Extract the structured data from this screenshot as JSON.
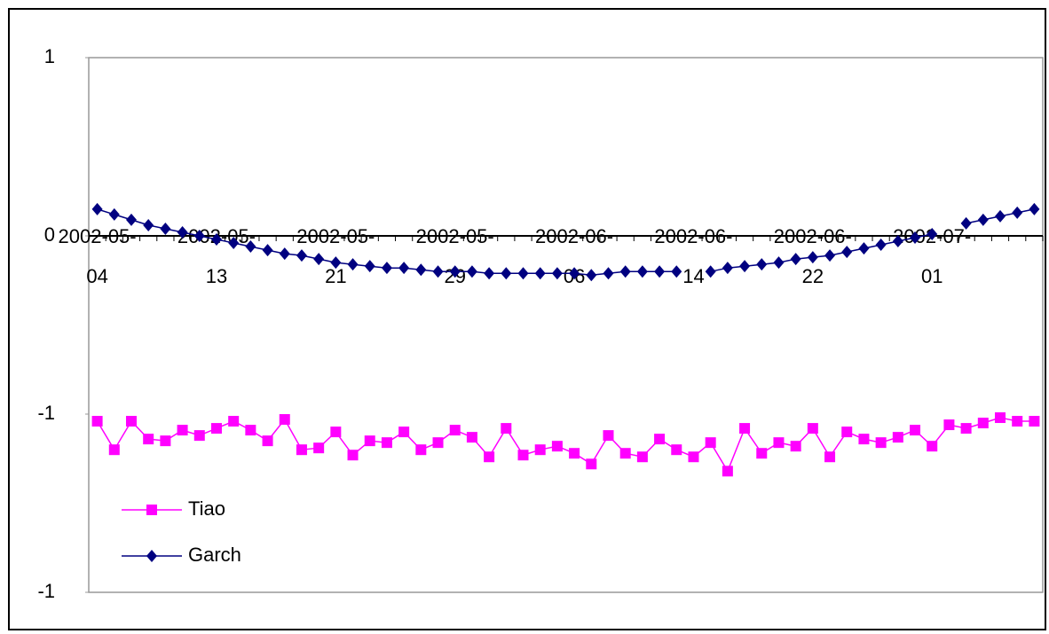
{
  "chart_data": {
    "type": "line",
    "categories": [
      "2002-05-04",
      null,
      null,
      null,
      null,
      null,
      null,
      "2002-05-13",
      null,
      null,
      null,
      null,
      null,
      null,
      "2002-05-21",
      null,
      null,
      null,
      null,
      null,
      null,
      "2002-05-29",
      null,
      null,
      null,
      null,
      null,
      null,
      "2002-06-06",
      null,
      null,
      null,
      null,
      null,
      null,
      "2002-06-14",
      null,
      null,
      null,
      null,
      null,
      null,
      "2002-06-22",
      null,
      null,
      null,
      null,
      null,
      null,
      "2002-07-01",
      null,
      null,
      null,
      null,
      null,
      null
    ],
    "series": [
      {
        "name": "Tiao",
        "color": "#ff00ff",
        "marker": "square",
        "values": [
          -0.52,
          -0.6,
          -0.52,
          -0.57,
          -0.575,
          -0.545,
          -0.56,
          -0.54,
          -0.52,
          -0.545,
          -0.575,
          -0.515,
          -0.6,
          -0.595,
          -0.55,
          -0.615,
          -0.575,
          -0.58,
          -0.55,
          -0.6,
          -0.58,
          -0.545,
          -0.565,
          -0.62,
          -0.54,
          -0.615,
          -0.6,
          -0.59,
          -0.61,
          -0.64,
          -0.56,
          -0.61,
          -0.62,
          -0.57,
          -0.6,
          -0.62,
          -0.58,
          -0.66,
          -0.54,
          -0.61,
          -0.58,
          -0.59,
          -0.54,
          -0.62,
          -0.55,
          -0.57,
          -0.58,
          -0.565,
          -0.545,
          -0.59,
          -0.53,
          -0.54,
          -0.525,
          -0.51,
          -0.52,
          -0.52
        ]
      },
      {
        "name": "Garch",
        "color": "#000080",
        "marker": "diamond",
        "values": [
          0.075,
          0.06,
          0.045,
          0.03,
          0.02,
          0.01,
          0.0,
          -0.01,
          -0.02,
          -0.03,
          -0.04,
          -0.05,
          -0.055,
          -0.065,
          -0.075,
          -0.08,
          -0.085,
          -0.09,
          -0.09,
          -0.095,
          -0.1,
          -0.1,
          -0.1,
          -0.105,
          -0.105,
          -0.105,
          -0.105,
          -0.105,
          -0.105,
          -0.11,
          -0.105,
          -0.1,
          -0.1,
          -0.1,
          -0.1,
          null,
          -0.1,
          -0.09,
          -0.085,
          -0.08,
          -0.075,
          -0.065,
          -0.06,
          -0.055,
          -0.045,
          -0.035,
          -0.025,
          -0.015,
          -0.005,
          0.005,
          null,
          0.035,
          0.045,
          0.055,
          0.065,
          0.075
        ]
      }
    ],
    "ylim": [
      -1,
      0.5
    ],
    "yticks": [
      {
        "value": -1,
        "label": "-1"
      },
      {
        "value": -0.5,
        "label": "-1"
      },
      0,
      {
        "value": 0.5,
        "label": "1"
      }
    ],
    "legend": "lower-left"
  }
}
